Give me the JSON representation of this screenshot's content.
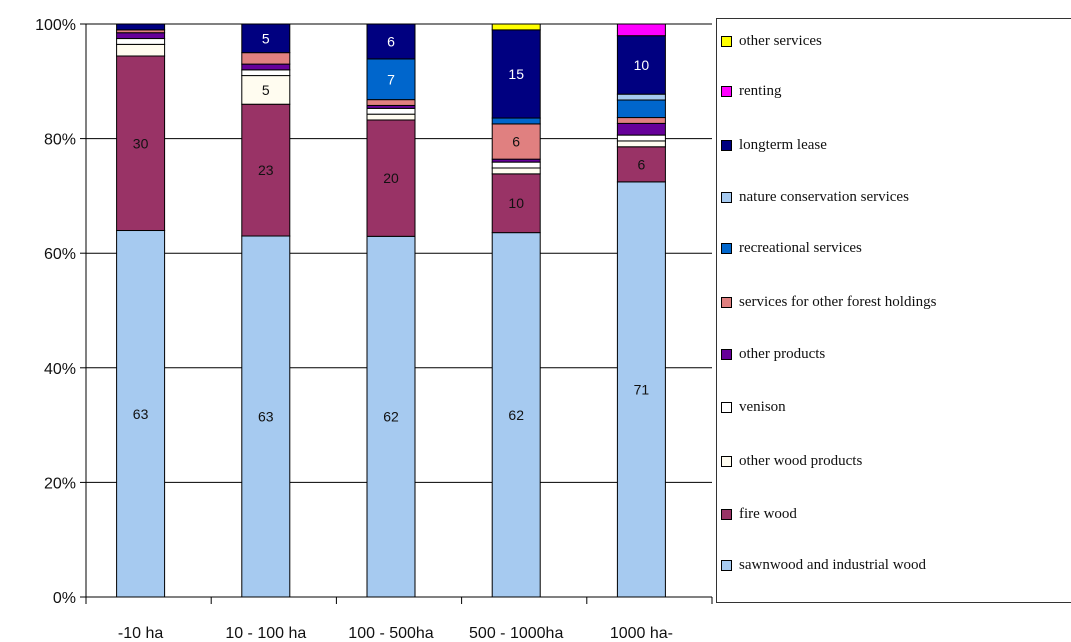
{
  "chart_data": {
    "type": "bar",
    "stacked": true,
    "percent_axis": true,
    "ylim": [
      0,
      100
    ],
    "yticks": [
      "0%",
      "20%",
      "40%",
      "60%",
      "80%",
      "100%"
    ],
    "categories": [
      "-10 ha",
      "10 - 100 ha",
      "100 - 500ha",
      "500 - 1000ha",
      "1000 ha-"
    ],
    "grid": true,
    "legend_position": "right",
    "series": [
      {
        "name": "sawnwood and industrial wood",
        "color": "#a6caf0",
        "values": [
          63,
          63,
          62,
          62,
          71
        ],
        "labels": [
          "63",
          "63",
          "62",
          "62",
          "71"
        ]
      },
      {
        "name": "fire wood",
        "color": "#993366",
        "values": [
          30,
          23,
          20,
          10,
          6
        ],
        "labels": [
          "30",
          "23",
          "20",
          "10",
          "6"
        ]
      },
      {
        "name": "other wood products",
        "color": "#fffcf0",
        "values": [
          2,
          5,
          1,
          1,
          1
        ],
        "labels": [
          "",
          "5",
          "",
          "",
          ""
        ]
      },
      {
        "name": "venison",
        "color": "#ffffff",
        "values": [
          1,
          1,
          1,
          1,
          1
        ],
        "labels": [
          "",
          "",
          "",
          "",
          ""
        ]
      },
      {
        "name": "other products",
        "color": "#660099",
        "values": [
          1,
          1,
          0.5,
          0.5,
          2
        ],
        "labels": [
          "",
          "",
          "",
          "",
          ""
        ]
      },
      {
        "name": "services for other forest holdings",
        "color": "#e08080",
        "values": [
          0.5,
          2,
          1,
          6,
          1
        ],
        "labels": [
          "",
          "",
          "",
          "6",
          ""
        ]
      },
      {
        "name": "recreational services",
        "color": "#0066cc",
        "values": [
          0,
          0,
          7,
          1,
          3
        ],
        "labels": [
          "",
          "",
          "7",
          "",
          ""
        ]
      },
      {
        "name": "nature conservation services",
        "color": "#a6caf0",
        "values": [
          0,
          0,
          0,
          0,
          1
        ],
        "labels": [
          "",
          "",
          "",
          "",
          ""
        ]
      },
      {
        "name": "longterm lease",
        "color": "#000080",
        "values": [
          1,
          5,
          6,
          15,
          10
        ],
        "labels": [
          "",
          "5",
          "6",
          "15",
          "10"
        ]
      },
      {
        "name": "renting",
        "color": "#ff00ff",
        "values": [
          0,
          0,
          0,
          0,
          2
        ],
        "labels": [
          "",
          "",
          "",
          "",
          ""
        ]
      },
      {
        "name": "other services",
        "color": "#ffff00",
        "values": [
          0,
          0,
          0,
          1,
          0
        ],
        "labels": [
          "",
          "",
          "",
          "",
          ""
        ]
      }
    ],
    "legend_order": [
      "other services",
      "renting",
      "longterm lease",
      "nature conservation services",
      "recreational services",
      "services for other forest holdings",
      "other products",
      "venison",
      "other wood products",
      "fire wood",
      "sawnwood and industrial wood"
    ]
  }
}
